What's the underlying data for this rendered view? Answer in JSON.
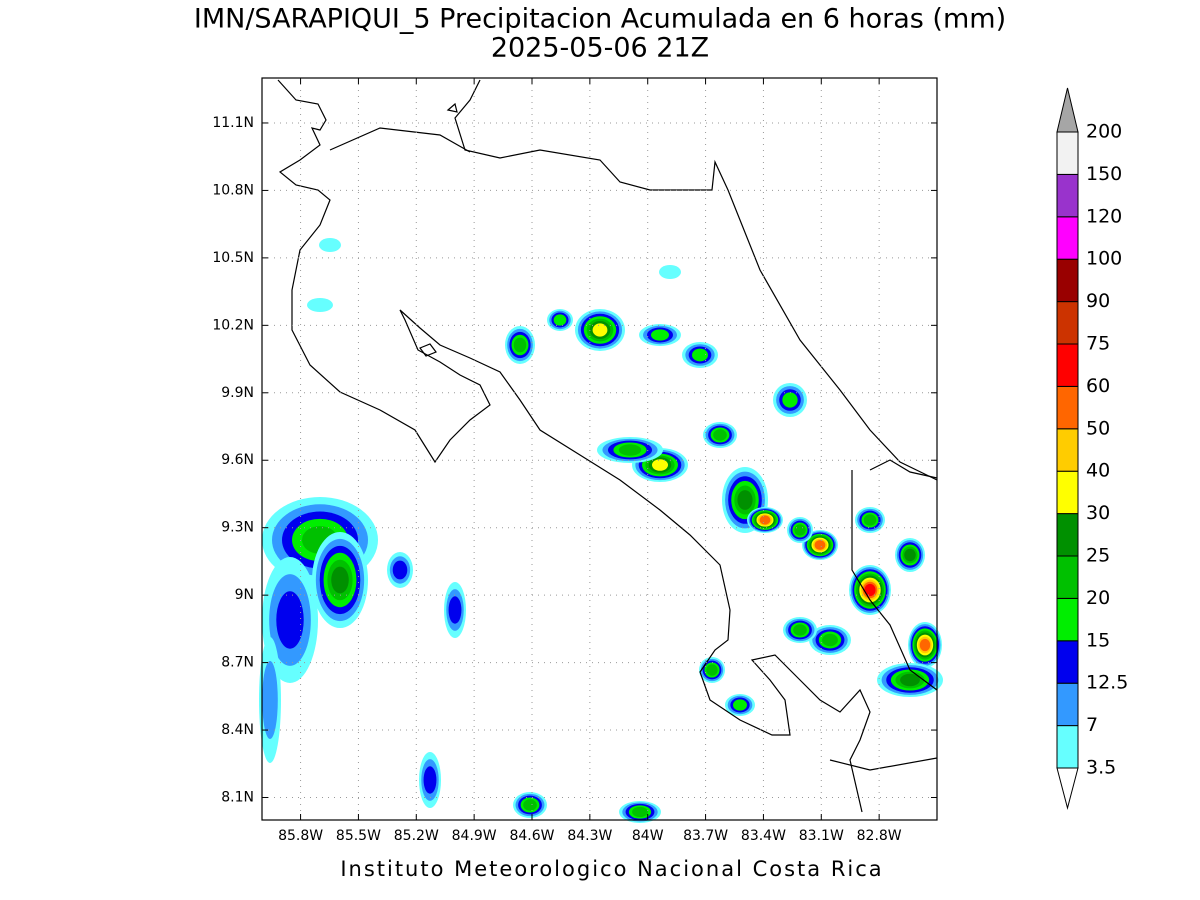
{
  "chart_data": {
    "type": "map",
    "title": "IMN/SARAPIQUI_5 Precipitacion Acumulada en 6 horas (mm)",
    "subtitle": "2025-05-06 21Z",
    "footer": "Instituto Meteorologico Nacional Costa Rica",
    "xlim": [
      -86.0,
      -82.5
    ],
    "ylim": [
      8.0,
      11.3
    ],
    "xticks": [
      {
        "value": -85.8,
        "label": "85.8W"
      },
      {
        "value": -85.5,
        "label": "85.5W"
      },
      {
        "value": -85.2,
        "label": "85.2W"
      },
      {
        "value": -84.9,
        "label": "84.9W"
      },
      {
        "value": -84.6,
        "label": "84.6W"
      },
      {
        "value": -84.3,
        "label": "84.3W"
      },
      {
        "value": -84.0,
        "label": "84W"
      },
      {
        "value": -83.7,
        "label": "83.7W"
      },
      {
        "value": -83.4,
        "label": "83.4W"
      },
      {
        "value": -83.1,
        "label": "83.1W"
      },
      {
        "value": -82.8,
        "label": "82.8W"
      }
    ],
    "yticks": [
      {
        "value": 11.1,
        "label": "11.1N"
      },
      {
        "value": 10.8,
        "label": "10.8N"
      },
      {
        "value": 10.5,
        "label": "10.5N"
      },
      {
        "value": 10.2,
        "label": "10.2N"
      },
      {
        "value": 9.9,
        "label": "9.9N"
      },
      {
        "value": 9.6,
        "label": "9.6N"
      },
      {
        "value": 9.3,
        "label": "9.3N"
      },
      {
        "value": 9.0,
        "label": "9N"
      },
      {
        "value": 8.7,
        "label": "8.7N"
      },
      {
        "value": 8.4,
        "label": "8.4N"
      },
      {
        "value": 8.1,
        "label": "8.1N"
      }
    ],
    "grid": true,
    "colorbar": {
      "levels": [
        3.5,
        7,
        12.5,
        15,
        20,
        25,
        30,
        40,
        50,
        60,
        75,
        90,
        100,
        120,
        150,
        200
      ],
      "colors": [
        "#ffffff",
        "#66ffff",
        "#3399ff",
        "#0000ee",
        "#00ee00",
        "#00c000",
        "#009000",
        "#ffff00",
        "#ffcc00",
        "#ff6600",
        "#ff0000",
        "#cc3300",
        "#990000",
        "#ff00ff",
        "#9933cc",
        "#f2f2f2",
        "#a6a6a6"
      ]
    }
  }
}
